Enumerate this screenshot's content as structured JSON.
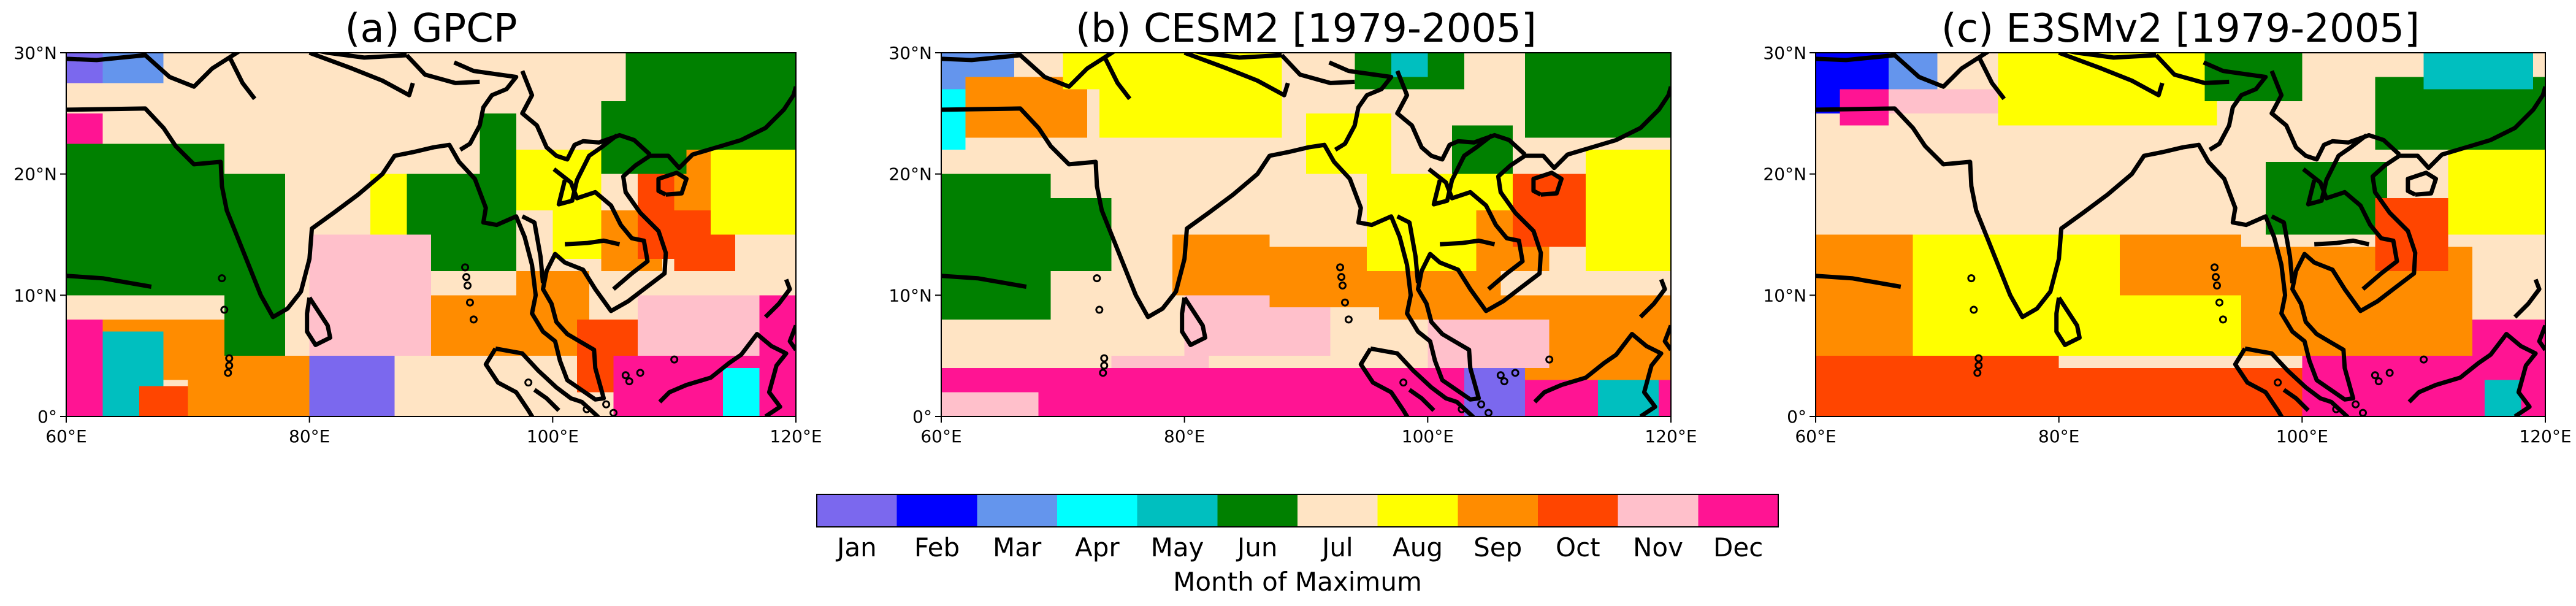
{
  "figure": {
    "colorbar": {
      "label": "Month of Maximum",
      "months": [
        "Jan",
        "Feb",
        "Mar",
        "Apr",
        "May",
        "Jun",
        "Jul",
        "Aug",
        "Sep",
        "Oct",
        "Nov",
        "Dec"
      ],
      "colors": [
        "#7B68EE",
        "#0000FF",
        "#6495ED",
        "#00FFFF",
        "#00BFBF",
        "#008000",
        "#FFE4C4",
        "#FFFF00",
        "#FF8C00",
        "#FF4500",
        "#FFC0CB",
        "#FF1493"
      ]
    }
  },
  "chart_data": [
    {
      "type": "heatmap",
      "title": "(a) GPCP",
      "x_ticks": [
        "60°E",
        "80°E",
        "100°E",
        "120°E"
      ],
      "y_ticks": [
        "0°",
        "10°N",
        "20°N",
        "30°N"
      ],
      "xlim": [
        60,
        120
      ],
      "ylim": [
        0,
        30
      ],
      "value_meaning": "month index 1-12 of maximum precipitation",
      "grid_resolution_deg": 2.5,
      "regions": [
        {
          "lon": [
            60,
            120
          ],
          "lat": [
            0,
            30
          ],
          "month": 7
        },
        {
          "lon": [
            60,
            73
          ],
          "lat": [
            10,
            22.5
          ],
          "month": 6
        },
        {
          "lon": [
            73,
            78
          ],
          "lat": [
            5,
            20
          ],
          "month": 6
        },
        {
          "lon": [
            78,
            84
          ],
          "lat": [
            12,
            20
          ],
          "month": 7
        },
        {
          "lon": [
            85,
            88
          ],
          "lat": [
            10,
            20
          ],
          "month": 8
        },
        {
          "lon": [
            88,
            94
          ],
          "lat": [
            12,
            20
          ],
          "month": 6
        },
        {
          "lon": [
            94,
            97
          ],
          "lat": [
            12,
            25
          ],
          "month": 6
        },
        {
          "lon": [
            97,
            100
          ],
          "lat": [
            17,
            22
          ],
          "month": 8
        },
        {
          "lon": [
            100,
            104
          ],
          "lat": [
            13,
            22
          ],
          "month": 8
        },
        {
          "lon": [
            104,
            109
          ],
          "lat": [
            12,
            17
          ],
          "month": 9
        },
        {
          "lon": [
            107,
            113
          ],
          "lat": [
            13,
            20
          ],
          "month": 10
        },
        {
          "lon": [
            110,
            116
          ],
          "lat": [
            17,
            22
          ],
          "month": 9
        },
        {
          "lon": [
            110,
            115
          ],
          "lat": [
            12,
            17
          ],
          "month": 10
        },
        {
          "lon": [
            113,
            120
          ],
          "lat": [
            15,
            22
          ],
          "month": 8
        },
        {
          "lon": [
            104,
            111
          ],
          "lat": [
            20,
            26
          ],
          "month": 6
        },
        {
          "lon": [
            106,
            120
          ],
          "lat": [
            22,
            30
          ],
          "month": 6
        },
        {
          "lon": [
            63,
            73
          ],
          "lat": [
            3,
            8
          ],
          "month": 9
        },
        {
          "lon": [
            60,
            63
          ],
          "lat": [
            0,
            8
          ],
          "month": 12
        },
        {
          "lon": [
            63,
            68
          ],
          "lat": [
            0,
            7
          ],
          "month": 5
        },
        {
          "lon": [
            66,
            70
          ],
          "lat": [
            0,
            2.5
          ],
          "month": 10
        },
        {
          "lon": [
            70,
            80
          ],
          "lat": [
            0,
            5
          ],
          "month": 9
        },
        {
          "lon": [
            80,
            87
          ],
          "lat": [
            0,
            5
          ],
          "month": 1
        },
        {
          "lon": [
            80,
            90
          ],
          "lat": [
            5,
            15
          ],
          "month": 11
        },
        {
          "lon": [
            90,
            103
          ],
          "lat": [
            5,
            10
          ],
          "month": 9
        },
        {
          "lon": [
            97,
            103
          ],
          "lat": [
            8,
            12
          ],
          "month": 9
        },
        {
          "lon": [
            102,
            107
          ],
          "lat": [
            2,
            8
          ],
          "month": 10
        },
        {
          "lon": [
            105,
            111
          ],
          "lat": [
            0,
            5
          ],
          "month": 12
        },
        {
          "lon": [
            111,
            117
          ],
          "lat": [
            0,
            7
          ],
          "month": 12
        },
        {
          "lon": [
            114,
            117
          ],
          "lat": [
            0,
            4
          ],
          "month": 4
        },
        {
          "lon": [
            117,
            120
          ],
          "lat": [
            0,
            10
          ],
          "month": 12
        },
        {
          "lon": [
            107,
            117
          ],
          "lat": [
            5,
            10
          ],
          "month": 11
        },
        {
          "lon": [
            60,
            63
          ],
          "lat": [
            22.5,
            25
          ],
          "month": 12
        },
        {
          "lon": [
            60,
            63
          ],
          "lat": [
            27.5,
            30
          ],
          "month": 1
        },
        {
          "lon": [
            63,
            68
          ],
          "lat": [
            27.5,
            30
          ],
          "month": 3
        }
      ]
    },
    {
      "type": "heatmap",
      "title": "(b) CESM2 [1979-2005]",
      "x_ticks": [
        "60°E",
        "80°E",
        "100°E",
        "120°E"
      ],
      "y_ticks": [
        "0°",
        "10°N",
        "20°N",
        "30°N"
      ],
      "xlim": [
        60,
        120
      ],
      "ylim": [
        0,
        30
      ],
      "value_meaning": "month index 1-12 of maximum precipitation",
      "grid_resolution_deg": 1.25,
      "regions": [
        {
          "lon": [
            60,
            120
          ],
          "lat": [
            0,
            30
          ],
          "month": 7
        },
        {
          "lon": [
            60,
            69
          ],
          "lat": [
            8,
            20
          ],
          "month": 6
        },
        {
          "lon": [
            69,
            74
          ],
          "lat": [
            12,
            18
          ],
          "month": 6
        },
        {
          "lon": [
            60,
            66
          ],
          "lat": [
            25,
            30
          ],
          "month": 3
        },
        {
          "lon": [
            60,
            62
          ],
          "lat": [
            22,
            27
          ],
          "month": 4
        },
        {
          "lon": [
            62,
            72
          ],
          "lat": [
            23,
            28
          ],
          "month": 9
        },
        {
          "lon": [
            73,
            88
          ],
          "lat": [
            23,
            30
          ],
          "month": 8
        },
        {
          "lon": [
            70,
            75
          ],
          "lat": [
            27,
            30
          ],
          "month": 8
        },
        {
          "lon": [
            74,
            82
          ],
          "lat": [
            0,
            5
          ],
          "month": 11
        },
        {
          "lon": [
            60,
            120
          ],
          "lat": [
            0,
            4
          ],
          "month": 12
        },
        {
          "lon": [
            60,
            68
          ],
          "lat": [
            0,
            2
          ],
          "month": 11
        },
        {
          "lon": [
            80,
            92
          ],
          "lat": [
            5,
            10
          ],
          "month": 11
        },
        {
          "lon": [
            79,
            87
          ],
          "lat": [
            10,
            15
          ],
          "month": 9
        },
        {
          "lon": [
            87,
            96
          ],
          "lat": [
            9,
            14
          ],
          "month": 9
        },
        {
          "lon": [
            96,
            106
          ],
          "lat": [
            8,
            12
          ],
          "month": 9
        },
        {
          "lon": [
            104,
            120
          ],
          "lat": [
            3,
            10
          ],
          "month": 9
        },
        {
          "lon": [
            100,
            110
          ],
          "lat": [
            4,
            8
          ],
          "month": 11
        },
        {
          "lon": [
            103,
            108
          ],
          "lat": [
            0,
            4
          ],
          "month": 1
        },
        {
          "lon": [
            114,
            119
          ],
          "lat": [
            0,
            3
          ],
          "month": 5
        },
        {
          "lon": [
            95,
            108
          ],
          "lat": [
            12,
            20
          ],
          "month": 8
        },
        {
          "lon": [
            90,
            97
          ],
          "lat": [
            20,
            25
          ],
          "month": 8
        },
        {
          "lon": [
            104,
            110
          ],
          "lat": [
            12,
            17
          ],
          "month": 9
        },
        {
          "lon": [
            107,
            113
          ],
          "lat": [
            14,
            20
          ],
          "month": 10
        },
        {
          "lon": [
            113,
            120
          ],
          "lat": [
            12,
            22
          ],
          "month": 8
        },
        {
          "lon": [
            102,
            107
          ],
          "lat": [
            20,
            24
          ],
          "month": 6
        },
        {
          "lon": [
            108,
            120
          ],
          "lat": [
            23,
            30
          ],
          "month": 6
        },
        {
          "lon": [
            94,
            103
          ],
          "lat": [
            27,
            30
          ],
          "month": 6
        },
        {
          "lon": [
            97,
            100
          ],
          "lat": [
            28,
            30
          ],
          "month": 5
        }
      ]
    },
    {
      "type": "heatmap",
      "title": "(c) E3SMv2 [1979-2005]",
      "x_ticks": [
        "60°E",
        "80°E",
        "100°E",
        "120°E"
      ],
      "y_ticks": [
        "0°",
        "10°N",
        "20°N",
        "30°N"
      ],
      "xlim": [
        60,
        120
      ],
      "ylim": [
        0,
        30
      ],
      "value_meaning": "month index 1-12 of maximum precipitation",
      "grid_resolution_deg": 1.0,
      "regions": [
        {
          "lon": [
            60,
            120
          ],
          "lat": [
            0,
            30
          ],
          "month": 7
        },
        {
          "lon": [
            60,
            68
          ],
          "lat": [
            25,
            30
          ],
          "month": 2
        },
        {
          "lon": [
            66,
            70
          ],
          "lat": [
            27,
            30
          ],
          "month": 3
        },
        {
          "lon": [
            62,
            66
          ],
          "lat": [
            24,
            27
          ],
          "month": 12
        },
        {
          "lon": [
            66,
            75
          ],
          "lat": [
            25,
            27
          ],
          "month": 11
        },
        {
          "lon": [
            75,
            93
          ],
          "lat": [
            24,
            30
          ],
          "month": 8
        },
        {
          "lon": [
            92,
            100
          ],
          "lat": [
            26,
            30
          ],
          "month": 6
        },
        {
          "lon": [
            106,
            120
          ],
          "lat": [
            22,
            28
          ],
          "month": 6
        },
        {
          "lon": [
            110,
            119
          ],
          "lat": [
            27,
            30
          ],
          "month": 5
        },
        {
          "lon": [
            97,
            107
          ],
          "lat": [
            15,
            21
          ],
          "month": 6
        },
        {
          "lon": [
            60,
            68
          ],
          "lat": [
            5,
            15
          ],
          "month": 9
        },
        {
          "lon": [
            68,
            95
          ],
          "lat": [
            5,
            15
          ],
          "month": 8
        },
        {
          "lon": [
            85,
            95
          ],
          "lat": [
            10,
            15
          ],
          "month": 9
        },
        {
          "lon": [
            95,
            114
          ],
          "lat": [
            5,
            14
          ],
          "month": 9
        },
        {
          "lon": [
            60,
            80
          ],
          "lat": [
            0,
            5
          ],
          "month": 10
        },
        {
          "lon": [
            80,
            100
          ],
          "lat": [
            0,
            4
          ],
          "month": 10
        },
        {
          "lon": [
            100,
            115
          ],
          "lat": [
            0,
            5
          ],
          "month": 12
        },
        {
          "lon": [
            114,
            120
          ],
          "lat": [
            0,
            8
          ],
          "month": 12
        },
        {
          "lon": [
            115,
            118
          ],
          "lat": [
            0,
            3
          ],
          "month": 5
        },
        {
          "lon": [
            106,
            112
          ],
          "lat": [
            12,
            18
          ],
          "month": 10
        },
        {
          "lon": [
            112,
            120
          ],
          "lat": [
            15,
            22
          ],
          "month": 8
        },
        {
          "lon": [
            70,
            95
          ],
          "lat": [
            15,
            20
          ],
          "month": 7
        }
      ]
    }
  ]
}
